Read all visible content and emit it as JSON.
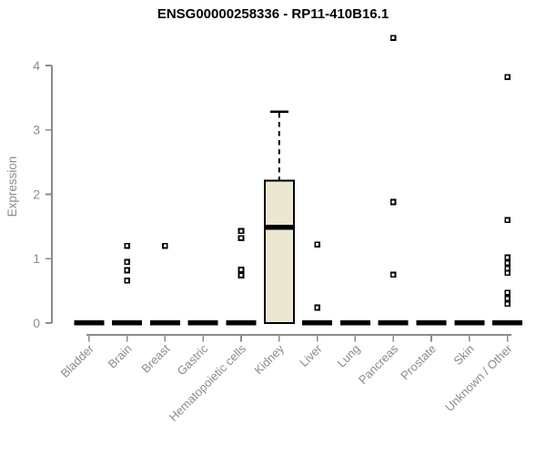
{
  "page": {
    "background": "#ffffff"
  },
  "chart_data": {
    "type": "boxplot",
    "title": "ENSG00000258336 - RP11-410B16.1",
    "ylabel": "Expression",
    "xlabel": "",
    "ylim": [
      0,
      4
    ],
    "yticks": [
      "0",
      "1",
      "2",
      "3",
      "4"
    ],
    "grid": false,
    "legend": "none",
    "colors": {
      "box_fill": "#ECE7D0",
      "box_stroke": "#000000",
      "median": "#000000",
      "outlier_stroke": "#000000",
      "outlier_fill": "#ffffff",
      "axis": "#8B8B8B",
      "title": "#000000"
    },
    "categories": [
      "Bladder",
      "Brain",
      "Breast",
      "Gastric",
      "Hematopoietic cells",
      "Kidney",
      "Liver",
      "Lung",
      "Pancreas",
      "Prostate",
      "Skin",
      "Unknown / Other"
    ],
    "series": [
      {
        "label": "Bladder",
        "q1": 0,
        "median": 0,
        "q3": 0,
        "whisker_low": 0,
        "whisker_high": 0,
        "outliers": []
      },
      {
        "label": "Brain",
        "q1": 0,
        "median": 0,
        "q3": 0,
        "whisker_low": 0,
        "whisker_high": 0,
        "outliers": [
          1.2,
          0.95,
          0.82,
          0.66
        ]
      },
      {
        "label": "Breast",
        "q1": 0,
        "median": 0,
        "q3": 0,
        "whisker_low": 0,
        "whisker_high": 0,
        "outliers": [
          1.2
        ]
      },
      {
        "label": "Gastric",
        "q1": 0,
        "median": 0,
        "q3": 0,
        "whisker_low": 0,
        "whisker_high": 0,
        "outliers": []
      },
      {
        "label": "Hematopoietic cells",
        "q1": 0,
        "median": 0,
        "q3": 0,
        "whisker_low": 0,
        "whisker_high": 0,
        "outliers": [
          1.43,
          1.32,
          0.83,
          0.74
        ]
      },
      {
        "label": "Kidney",
        "q1": 0,
        "median": 1.49,
        "q3": 2.21,
        "whisker_low": 0,
        "whisker_high": 3.28,
        "outliers": []
      },
      {
        "label": "Liver",
        "q1": 0,
        "median": 0,
        "q3": 0,
        "whisker_low": 0,
        "whisker_high": 0,
        "outliers": [
          1.22,
          0.24
        ]
      },
      {
        "label": "Lung",
        "q1": 0,
        "median": 0,
        "q3": 0,
        "whisker_low": 0,
        "whisker_high": 0,
        "outliers": []
      },
      {
        "label": "Pancreas",
        "q1": 0,
        "median": 0,
        "q3": 0,
        "whisker_low": 0,
        "whisker_high": 0,
        "outliers": [
          4.43,
          1.88,
          0.75
        ]
      },
      {
        "label": "Prostate",
        "q1": 0,
        "median": 0,
        "q3": 0,
        "whisker_low": 0,
        "whisker_high": 0,
        "outliers": []
      },
      {
        "label": "Skin",
        "q1": 0,
        "median": 0,
        "q3": 0,
        "whisker_low": 0,
        "whisker_high": 0,
        "outliers": []
      },
      {
        "label": "Unknown / Other",
        "q1": 0,
        "median": 0,
        "q3": 0,
        "whisker_low": 0,
        "whisker_high": 0,
        "outliers": [
          3.82,
          1.6,
          1.02,
          0.93,
          0.85,
          0.78,
          0.47,
          0.38,
          0.3
        ]
      }
    ]
  }
}
